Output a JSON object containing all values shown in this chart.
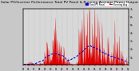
{
  "title": "Solar PV/Inverter Performance Total PV Panel & Running Average Power Output",
  "title_fontsize": 3.2,
  "bg_color": "#c8c8c8",
  "plot_bg_color": "#d8d8d8",
  "bar_color": "#dd0000",
  "avg_line_color": "#0000dd",
  "grid_color": "#aaaaaa",
  "ylabel_right": [
    "1k",
    "2k",
    "3k",
    "4k",
    "5k",
    "6k",
    "7k"
  ],
  "ylabel_right_vals": [
    1000,
    2000,
    3000,
    4000,
    5000,
    6000,
    7000
  ],
  "ymax": 7000,
  "num_points": 300,
  "avg_value": 900
}
